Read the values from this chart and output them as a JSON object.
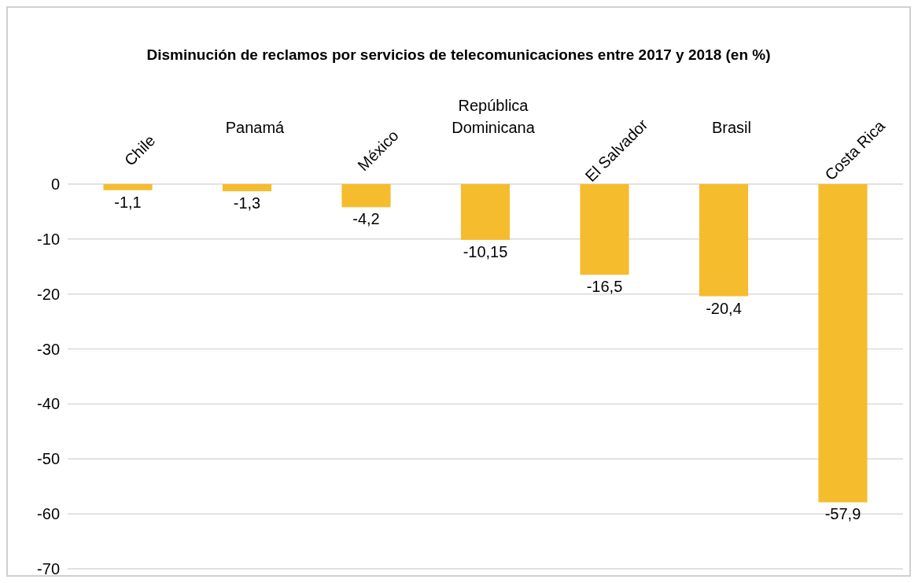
{
  "chart_data": {
    "type": "bar",
    "title": "Disminución de reclamos por servicios de telecomunicaciones entre 2017 y 2018 (en %)",
    "categories": [
      "Chile",
      "Panamá",
      "México",
      "República Dominicana",
      "El Salvador",
      "Brasil",
      "Costa Rica"
    ],
    "values": [
      -1.1,
      -1.3,
      -4.2,
      -10.15,
      -16.5,
      -20.4,
      -57.9
    ],
    "value_labels": [
      "-1,1",
      "-1,3",
      "-4,2",
      "-10,15",
      "-16,5",
      "-20,4",
      "-57,9"
    ],
    "color": "#f5bc2e",
    "ylim": [
      -70,
      0
    ],
    "yticks": [
      0,
      -10,
      -20,
      -30,
      -40,
      -50,
      -60,
      -70
    ],
    "grid": "y"
  }
}
